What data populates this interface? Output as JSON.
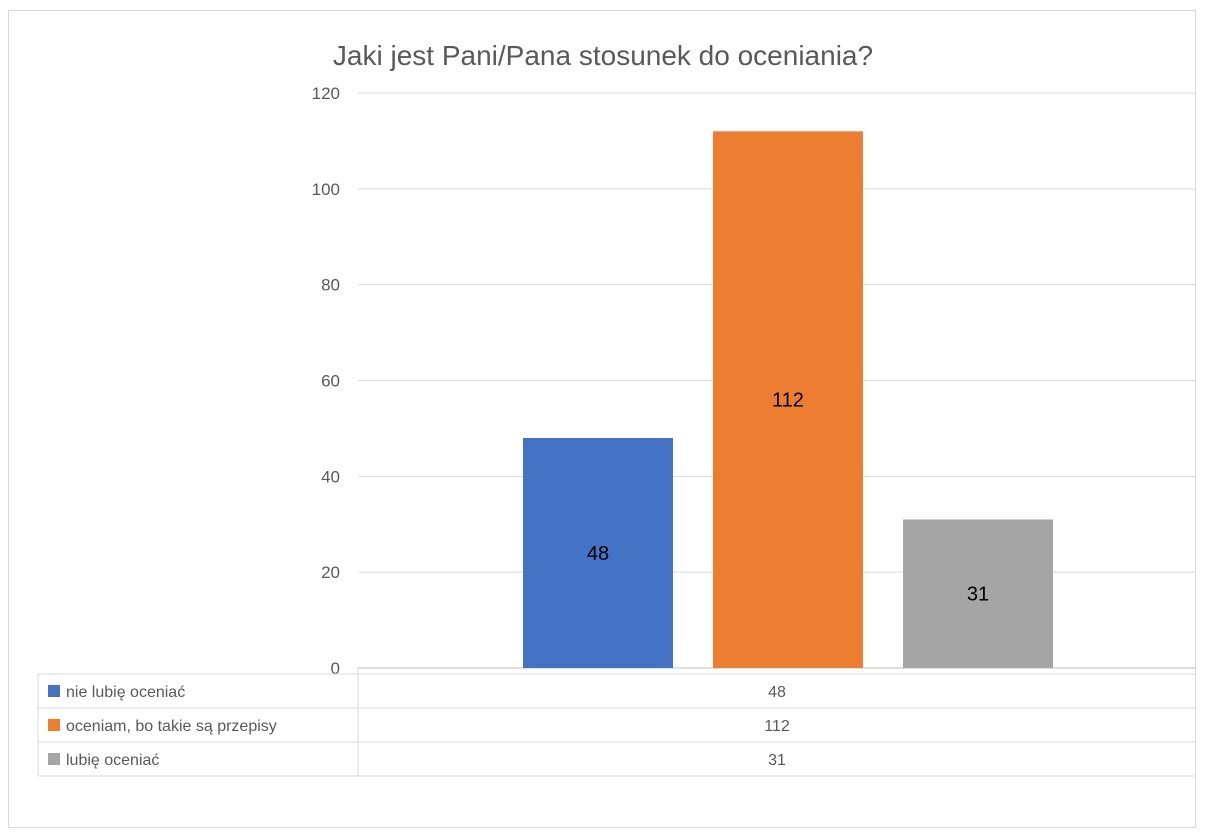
{
  "chart_data": {
    "type": "bar",
    "title": "Jaki jest Pani/Pana stosunek do oceniania?",
    "series": [
      {
        "name": "nie lubię oceniać",
        "value": 48,
        "color": "#4472C4"
      },
      {
        "name": "oceniam, bo takie są przepisy",
        "value": 112,
        "color": "#ED7D31"
      },
      {
        "name": "lubię oceniać",
        "value": 31,
        "color": "#A5A5A5"
      }
    ],
    "ylim": [
      0,
      120
    ],
    "yticks": [
      0,
      20,
      40,
      60,
      80,
      100,
      120
    ],
    "grid": true,
    "legend": "data-table-below"
  }
}
